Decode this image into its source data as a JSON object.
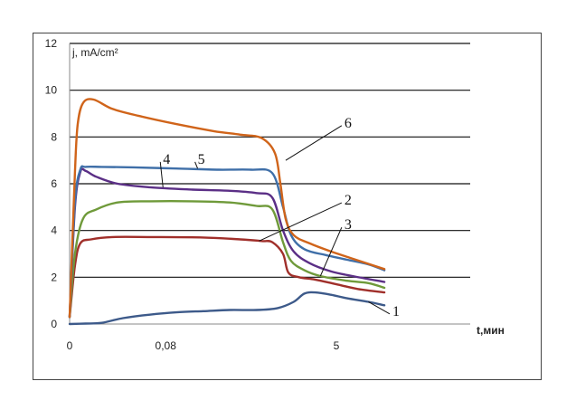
{
  "chart_data": {
    "type": "line",
    "ylabel": "j, mA/cm²",
    "xlabel": "t,мин",
    "ylim": [
      0,
      12
    ],
    "yticks": [
      "0",
      "2",
      "4",
      "6",
      "8",
      "10",
      "12"
    ],
    "xticks": [
      "0",
      "0,08",
      "5"
    ],
    "grid": "horizontal",
    "series": [
      {
        "name": "1",
        "color": "#3d5a8a",
        "points": [
          [
            0,
            0.0
          ],
          [
            0.3,
            0.02
          ],
          [
            0.6,
            0.05
          ],
          [
            1.0,
            0.25
          ],
          [
            1.5,
            0.4
          ],
          [
            2.0,
            0.5
          ],
          [
            2.5,
            0.55
          ],
          [
            3.0,
            0.6
          ],
          [
            3.5,
            0.6
          ],
          [
            3.9,
            0.68
          ],
          [
            4.2,
            0.95
          ],
          [
            4.4,
            1.3
          ],
          [
            4.6,
            1.35
          ],
          [
            4.9,
            1.25
          ],
          [
            5.2,
            1.1
          ],
          [
            5.6,
            0.95
          ],
          [
            5.9,
            0.8
          ]
        ]
      },
      {
        "name": "2",
        "color": "#a02f2a",
        "points": [
          [
            0,
            0.3
          ],
          [
            0.1,
            2.5
          ],
          [
            0.2,
            3.45
          ],
          [
            0.4,
            3.62
          ],
          [
            0.8,
            3.72
          ],
          [
            1.5,
            3.72
          ],
          [
            2.5,
            3.7
          ],
          [
            3.2,
            3.62
          ],
          [
            3.6,
            3.55
          ],
          [
            3.8,
            3.5
          ],
          [
            4.0,
            3.0
          ],
          [
            4.1,
            2.2
          ],
          [
            4.3,
            2.0
          ],
          [
            4.6,
            1.9
          ],
          [
            5.0,
            1.7
          ],
          [
            5.4,
            1.5
          ],
          [
            5.9,
            1.35
          ]
        ]
      },
      {
        "name": "3",
        "color": "#6f9a3a",
        "points": [
          [
            0,
            0.3
          ],
          [
            0.1,
            3.0
          ],
          [
            0.25,
            4.5
          ],
          [
            0.5,
            4.9
          ],
          [
            0.9,
            5.2
          ],
          [
            1.5,
            5.25
          ],
          [
            2.3,
            5.25
          ],
          [
            3.0,
            5.2
          ],
          [
            3.5,
            5.05
          ],
          [
            3.8,
            4.9
          ],
          [
            4.0,
            3.5
          ],
          [
            4.15,
            2.7
          ],
          [
            4.4,
            2.3
          ],
          [
            4.7,
            2.05
          ],
          [
            5.2,
            1.85
          ],
          [
            5.6,
            1.75
          ],
          [
            5.9,
            1.55
          ]
        ]
      },
      {
        "name": "4",
        "color": "#5b2f86",
        "points": [
          [
            0,
            0.3
          ],
          [
            0.1,
            5.0
          ],
          [
            0.2,
            6.5
          ],
          [
            0.3,
            6.55
          ],
          [
            0.5,
            6.3
          ],
          [
            0.9,
            6.0
          ],
          [
            1.5,
            5.85
          ],
          [
            2.3,
            5.75
          ],
          [
            3.0,
            5.7
          ],
          [
            3.5,
            5.6
          ],
          [
            3.8,
            5.4
          ],
          [
            4.0,
            4.0
          ],
          [
            4.2,
            3.1
          ],
          [
            4.5,
            2.6
          ],
          [
            4.9,
            2.25
          ],
          [
            5.3,
            2.05
          ],
          [
            5.9,
            1.8
          ]
        ]
      },
      {
        "name": "5",
        "color": "#3f6fa8",
        "points": [
          [
            0,
            0.3
          ],
          [
            0.1,
            5.2
          ],
          [
            0.2,
            6.6
          ],
          [
            0.3,
            6.72
          ],
          [
            0.6,
            6.72
          ],
          [
            1.2,
            6.7
          ],
          [
            2.0,
            6.65
          ],
          [
            2.8,
            6.6
          ],
          [
            3.4,
            6.6
          ],
          [
            3.8,
            6.45
          ],
          [
            4.0,
            5.0
          ],
          [
            4.15,
            3.8
          ],
          [
            4.4,
            3.2
          ],
          [
            4.8,
            2.95
          ],
          [
            5.2,
            2.75
          ],
          [
            5.6,
            2.55
          ],
          [
            5.9,
            2.3
          ]
        ]
      },
      {
        "name": "6",
        "color": "#d0641a",
        "points": [
          [
            0,
            0.3
          ],
          [
            0.1,
            6.5
          ],
          [
            0.15,
            8.5
          ],
          [
            0.25,
            9.45
          ],
          [
            0.45,
            9.6
          ],
          [
            0.8,
            9.2
          ],
          [
            1.3,
            8.9
          ],
          [
            2.0,
            8.55
          ],
          [
            2.7,
            8.25
          ],
          [
            3.2,
            8.1
          ],
          [
            3.6,
            7.95
          ],
          [
            3.85,
            7.3
          ],
          [
            3.95,
            6.0
          ],
          [
            4.05,
            4.5
          ],
          [
            4.2,
            3.8
          ],
          [
            4.5,
            3.45
          ],
          [
            4.9,
            3.1
          ],
          [
            5.3,
            2.8
          ],
          [
            5.9,
            2.35
          ]
        ]
      }
    ]
  }
}
